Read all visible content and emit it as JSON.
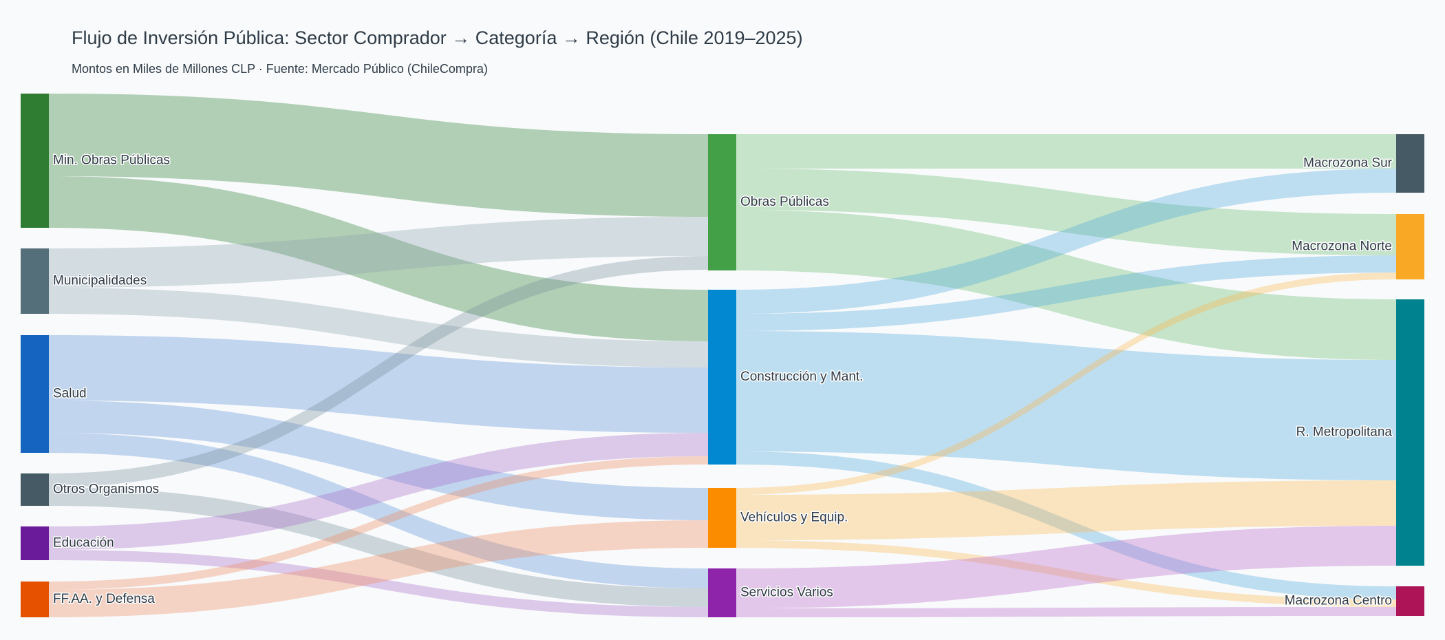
{
  "chart_data": {
    "type": "sankey",
    "title": "Flujo de Inversión Pública: Sector Comprador → Categoría → Región (Chile 2019–2025)",
    "subtitle": "Montos en Miles de Millones CLP · Fuente: Mercado Público (ChileCompra)",
    "nodes": [
      {
        "id": "mop",
        "label": "Min. Obras Públicas",
        "column": 0,
        "color": "#2e7d32"
      },
      {
        "id": "muni",
        "label": "Municipalidades",
        "column": 0,
        "color": "#546e7a"
      },
      {
        "id": "salud",
        "label": "Salud",
        "column": 0,
        "color": "#1565c0"
      },
      {
        "id": "otros",
        "label": "Otros Organismos",
        "column": 0,
        "color": "#455a64"
      },
      {
        "id": "edu",
        "label": "Educación",
        "column": 0,
        "color": "#6a1b9a"
      },
      {
        "id": "ffaa",
        "label": "FF.AA. y Defensa",
        "column": 0,
        "color": "#e65100"
      },
      {
        "id": "obras",
        "label": "Obras Públicas",
        "column": 1,
        "color": "#43a047"
      },
      {
        "id": "constr",
        "label": "Construcción y Mant.",
        "column": 1,
        "color": "#0288d1"
      },
      {
        "id": "veh",
        "label": "Vehículos y Equip.",
        "column": 1,
        "color": "#fb8c00"
      },
      {
        "id": "serv",
        "label": "Servicios Varios",
        "column": 1,
        "color": "#8e24aa"
      },
      {
        "id": "sur",
        "label": "Macrozona Sur",
        "column": 2,
        "color": "#455a64"
      },
      {
        "id": "norte",
        "label": "Macrozona Norte",
        "column": 2,
        "color": "#f9a825"
      },
      {
        "id": "rm",
        "label": "R. Metropolitana",
        "column": 2,
        "color": "#00838f"
      },
      {
        "id": "centro",
        "label": "Macrozona Centro",
        "column": 2,
        "color": "#ad1457"
      }
    ],
    "links": [
      {
        "source": "mop",
        "target": "obras",
        "value": 120,
        "color": "#2e7d32"
      },
      {
        "source": "mop",
        "target": "constr",
        "value": 75,
        "color": "#2e7d32"
      },
      {
        "source": "muni",
        "target": "obras",
        "value": 57,
        "color": "#90a4ae"
      },
      {
        "source": "muni",
        "target": "constr",
        "value": 38,
        "color": "#90a4ae"
      },
      {
        "source": "salud",
        "target": "constr",
        "value": 95,
        "color": "#5c8fd6"
      },
      {
        "source": "salud",
        "target": "veh",
        "value": 47,
        "color": "#5c8fd6"
      },
      {
        "source": "salud",
        "target": "serv",
        "value": 29,
        "color": "#5c8fd6"
      },
      {
        "source": "otros",
        "target": "obras",
        "value": 20,
        "color": "#78909c"
      },
      {
        "source": "otros",
        "target": "serv",
        "value": 27,
        "color": "#78909c"
      },
      {
        "source": "edu",
        "target": "constr",
        "value": 34,
        "color": "#a86cc9"
      },
      {
        "source": "edu",
        "target": "serv",
        "value": 15,
        "color": "#a86cc9"
      },
      {
        "source": "ffaa",
        "target": "constr",
        "value": 12,
        "color": "#f08a5d"
      },
      {
        "source": "ffaa",
        "target": "veh",
        "value": 40,
        "color": "#f08a5d"
      },
      {
        "source": "obras",
        "target": "sur",
        "value": 50,
        "color": "#66bb6a"
      },
      {
        "source": "obras",
        "target": "norte",
        "value": 60,
        "color": "#66bb6a"
      },
      {
        "source": "obras",
        "target": "rm",
        "value": 88,
        "color": "#66bb6a"
      },
      {
        "source": "constr",
        "target": "sur",
        "value": 35,
        "color": "#4fa9db"
      },
      {
        "source": "constr",
        "target": "norte",
        "value": 25,
        "color": "#4fa9db"
      },
      {
        "source": "constr",
        "target": "rm",
        "value": 175,
        "color": "#4fa9db"
      },
      {
        "source": "constr",
        "target": "centro",
        "value": 19,
        "color": "#4fa9db"
      },
      {
        "source": "veh",
        "target": "norte",
        "value": 10,
        "color": "#ffb74d"
      },
      {
        "source": "veh",
        "target": "rm",
        "value": 66,
        "color": "#ffb74d"
      },
      {
        "source": "veh",
        "target": "centro",
        "value": 11,
        "color": "#ffb74d"
      },
      {
        "source": "serv",
        "target": "rm",
        "value": 58,
        "color": "#ba68c8"
      },
      {
        "source": "serv",
        "target": "centro",
        "value": 13,
        "color": "#ba68c8"
      }
    ]
  }
}
